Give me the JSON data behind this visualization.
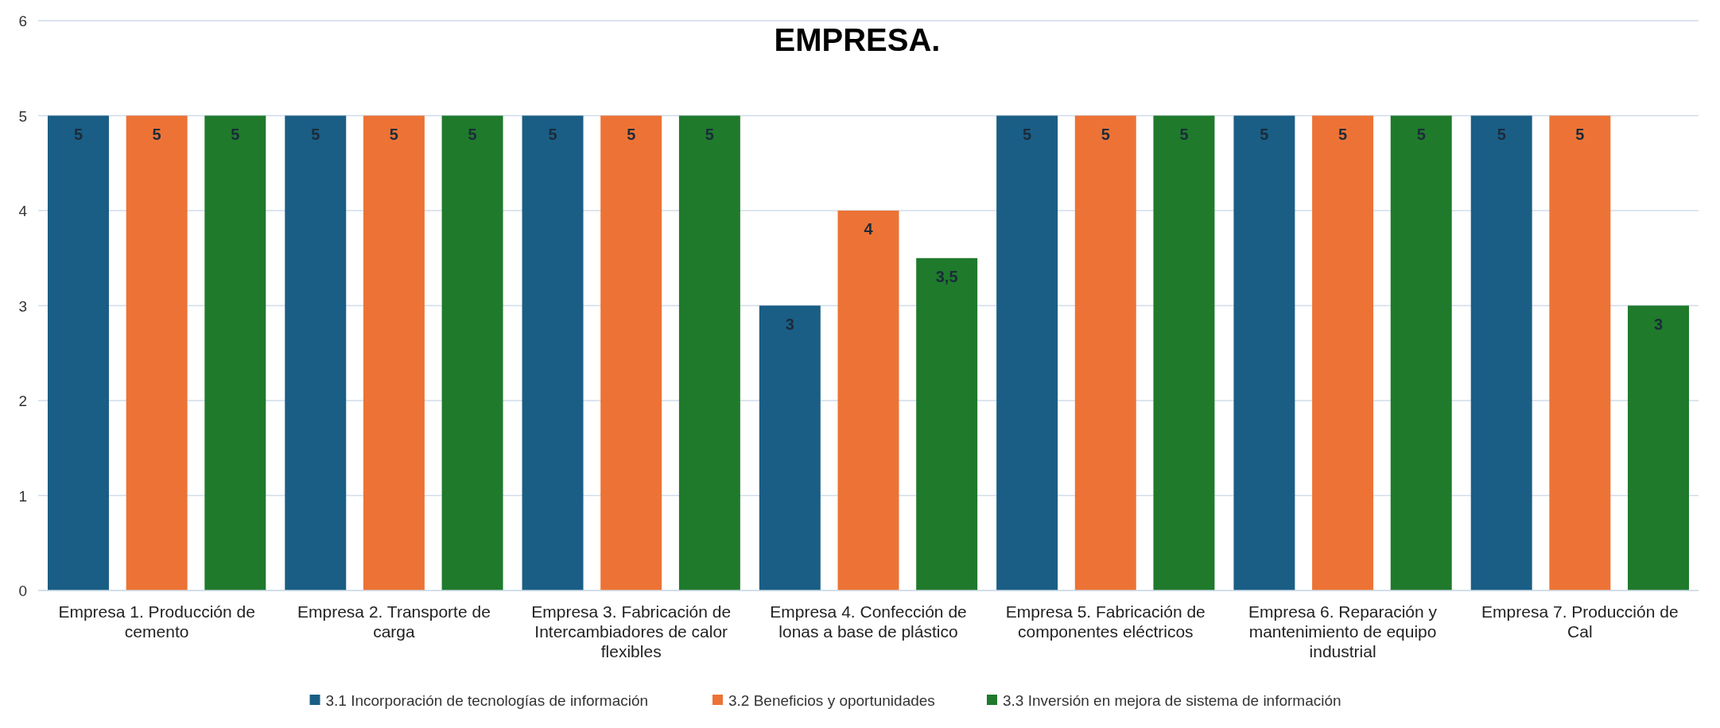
{
  "chart_data": {
    "type": "bar",
    "title": "EMPRESA.",
    "categories": [
      "Empresa 1. Producción de cemento",
      "Empresa 2. Transporte de carga",
      "Empresa 3. Fabricación de Intercambiadores de calor flexibles",
      "Empresa 4. Confección de lonas a base de plástico",
      "Empresa 5. Fabricación de componentes eléctricos",
      "Empresa 6. Reparación y mantenimiento de equipo industrial",
      "Empresa 7. Producción de Cal"
    ],
    "series": [
      {
        "name": "3.1 Incorporación de tecnologías de información",
        "color": "#1a5e85",
        "values": [
          5,
          5,
          5,
          3,
          5,
          5,
          5
        ],
        "value_labels": [
          "5",
          "5",
          "5",
          "3",
          "5",
          "5",
          "5"
        ]
      },
      {
        "name": "3.2 Beneficios y oportunidades",
        "color": "#ec7335",
        "values": [
          5,
          5,
          5,
          4,
          5,
          5,
          5
        ],
        "value_labels": [
          "5",
          "5",
          "5",
          "4",
          "5",
          "5",
          "5"
        ]
      },
      {
        "name": "3.3 Inversión en mejora de sistema de información",
        "color": "#1f7a2c",
        "values": [
          5,
          5,
          5,
          3.5,
          5,
          5,
          3
        ],
        "value_labels": [
          "5",
          "5",
          "5",
          "3,5",
          "5",
          "5",
          "3"
        ]
      }
    ],
    "ylim": [
      0,
      6
    ],
    "yticks": [
      0,
      1,
      2,
      3,
      4,
      5,
      6
    ],
    "grid": "y",
    "legend": "bottom"
  }
}
